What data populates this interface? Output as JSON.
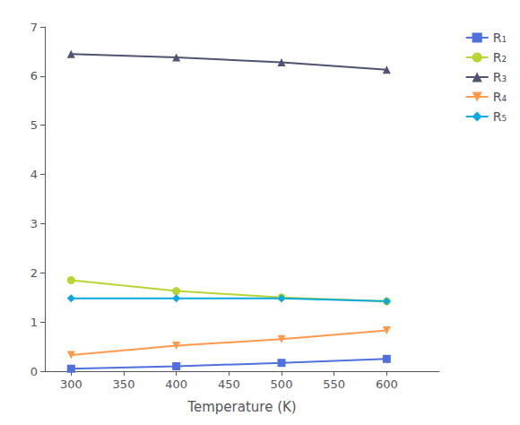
{
  "chart_data": {
    "type": "line",
    "x": [
      300,
      400,
      500,
      600
    ],
    "series": [
      {
        "name": "R₁",
        "marker": "square",
        "values": [
          0.05,
          0.1,
          0.17,
          0.25
        ]
      },
      {
        "name": "R₂",
        "marker": "circle",
        "values": [
          1.85,
          1.63,
          1.5,
          1.42
        ]
      },
      {
        "name": "R₃",
        "marker": "triangle",
        "values": [
          6.45,
          6.38,
          6.28,
          6.13
        ]
      },
      {
        "name": "R₄",
        "marker": "triangle-down",
        "values": [
          0.33,
          0.52,
          0.65,
          0.83
        ]
      },
      {
        "name": "R₅",
        "marker": "diamond",
        "values": [
          1.48,
          1.48,
          1.48,
          1.42
        ]
      }
    ],
    "xlabel": "Temperature (K)",
    "xlim": [
      275,
      650
    ],
    "ylim": [
      0,
      7
    ],
    "xticks": [
      300,
      350,
      400,
      450,
      500,
      550,
      600
    ],
    "yticks": [
      0,
      1,
      2,
      3,
      4,
      5,
      6,
      7
    ],
    "grid": false,
    "legend": "upper right"
  }
}
